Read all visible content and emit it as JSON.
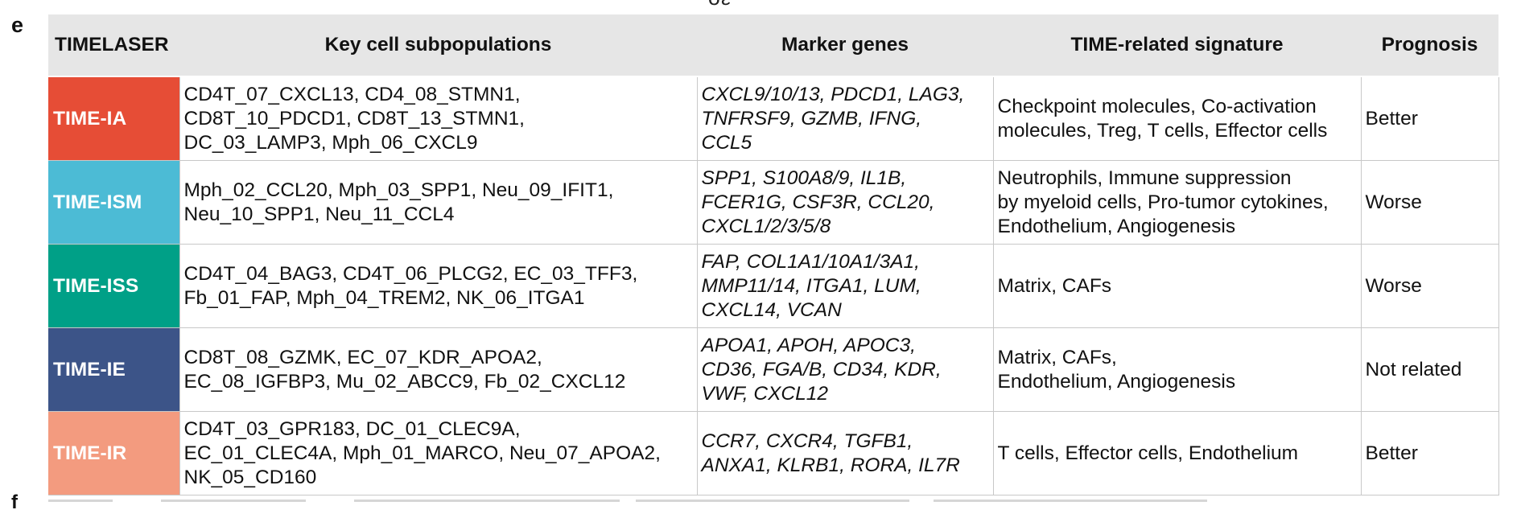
{
  "panel_label": "e",
  "next_panel_label": "f",
  "top_fragment": "σε",
  "table": {
    "headers": [
      "TIMELASER",
      "Key cell subpopulations",
      "Marker genes",
      "TIME-related signature",
      "Prognosis"
    ],
    "rows": [
      {
        "label": "TIME-IA",
        "color": "#e64d36",
        "subpopulations": [
          "CD4T_07_CXCL13, CD4_08_STMN1,",
          "CD8T_10_PDCD1, CD8T_13_STMN1,",
          "DC_03_LAMP3, Mph_06_CXCL9"
        ],
        "markers": [
          "CXCL9/10/13, PDCD1, LAG3,",
          "TNFRSF9, GZMB, IFNG,",
          "CCL5"
        ],
        "signature": [
          "Checkpoint molecules, Co-activation",
          "molecules, Treg, T cells, Effector cells"
        ],
        "prognosis": "Better"
      },
      {
        "label": "TIME-ISM",
        "color": "#4cbbd5",
        "subpopulations": [
          "Mph_02_CCL20, Mph_03_SPP1, Neu_09_IFIT1,",
          "Neu_10_SPP1, Neu_11_CCL4"
        ],
        "markers": [
          "SPP1, S100A8/9, IL1B,",
          "FCER1G, CSF3R, CCL20,",
          "CXCL1/2/3/5/8"
        ],
        "signature": [
          "Neutrophils, Immune suppression",
          "by myeloid cells, Pro-tumor cytokines,",
          "Endothelium, Angiogenesis"
        ],
        "prognosis": "Worse"
      },
      {
        "label": "TIME-ISS",
        "color": "#00a087",
        "subpopulations": [
          "CD4T_04_BAG3, CD4T_06_PLCG2, EC_03_TFF3,",
          "Fb_01_FAP,  Mph_04_TREM2,  NK_06_ITGA1"
        ],
        "markers": [
          "FAP, COL1A1/10A1/3A1,",
          "MMP11/14, ITGA1, LUM,",
          "CXCL14, VCAN"
        ],
        "signature": [
          "Matrix, CAFs"
        ],
        "prognosis": "Worse"
      },
      {
        "label": "TIME-IE",
        "color": "#3c5488",
        "subpopulations": [
          "CD8T_08_GZMK, EC_07_KDR_APOA2,",
          "EC_08_IGFBP3,  Mu_02_ABCC9, Fb_02_CXCL12"
        ],
        "markers": [
          "APOA1, APOH, APOC3,",
          "CD36, FGA/B, CD34, KDR,",
          "VWF, CXCL12"
        ],
        "signature": [
          "Matrix, CAFs,",
          "Endothelium, Angiogenesis"
        ],
        "prognosis": "Not related"
      },
      {
        "label": "TIME-IR",
        "color": "#f39b7f",
        "subpopulations": [
          "CD4T_03_GPR183, DC_01_CLEC9A,",
          "EC_01_CLEC4A, Mph_01_MARCO, Neu_07_APOA2,",
          "NK_05_CD160"
        ],
        "markers": [
          "CCR7, CXCR4, TGFB1,",
          "ANXA1, KLRB1, RORA, IL7R"
        ],
        "signature": [
          "T cells, Effector cells, Endothelium"
        ],
        "prognosis": "Better"
      }
    ]
  }
}
